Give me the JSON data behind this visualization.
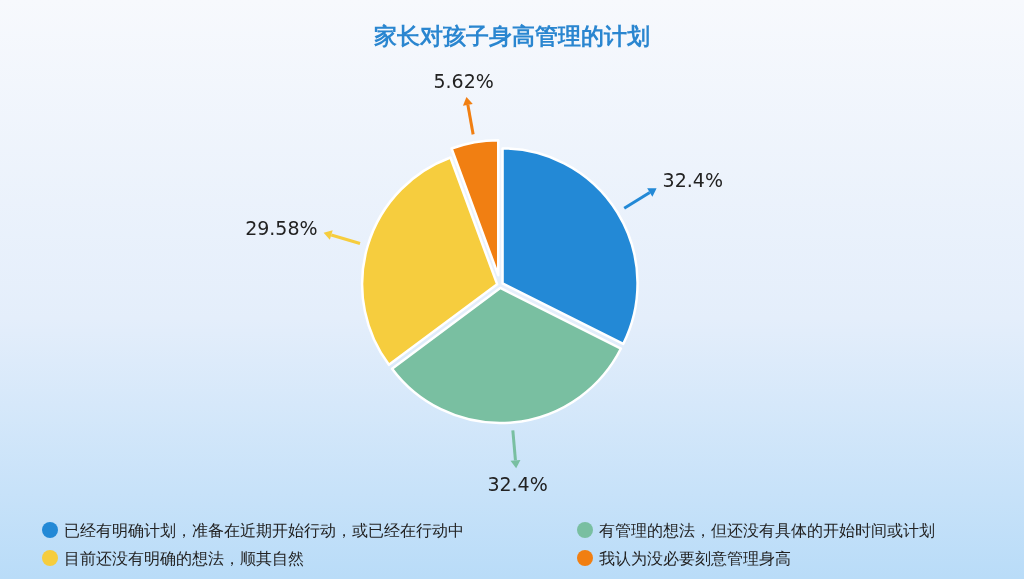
{
  "chart_data": {
    "type": "pie",
    "title": "家长对孩子身高管理的计划",
    "categories": [
      "已经有明确计划，准备在近期开始行动，或已经在行动中",
      "有管理的想法，但还没有具体的开始时间或计划",
      "目前还没有明确的想法，顺其自然",
      "我认为没必要刻意管理身高"
    ],
    "values": [
      32.4,
      32.4,
      29.58,
      5.62
    ],
    "colors": [
      "#2389d6",
      "#79bfa1",
      "#f6cd3e",
      "#f17f12"
    ],
    "value_labels": [
      "32.4%",
      "32.4%",
      "29.58%",
      "5.62%"
    ],
    "legend": "bottom"
  }
}
